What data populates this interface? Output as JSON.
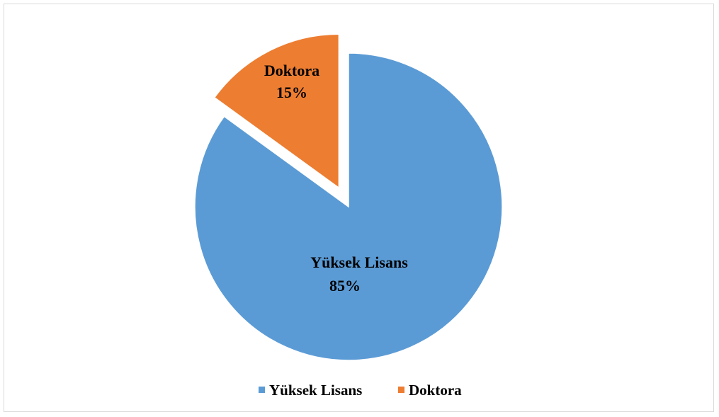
{
  "chart_data": {
    "type": "pie",
    "title": "",
    "slices": [
      {
        "label": "Yüksek Lisans",
        "value": 85,
        "value_label": "85%",
        "color": "#5B9BD5",
        "exploded": false
      },
      {
        "label": "Doktora",
        "value": 15,
        "value_label": "15%",
        "color": "#ED7D31",
        "exploded": true
      }
    ],
    "start_angle": "12 o'clock, clockwise",
    "legend": {
      "placement": "bottom",
      "entries": [
        "Yüksek Lisans",
        "Doktora"
      ]
    }
  }
}
